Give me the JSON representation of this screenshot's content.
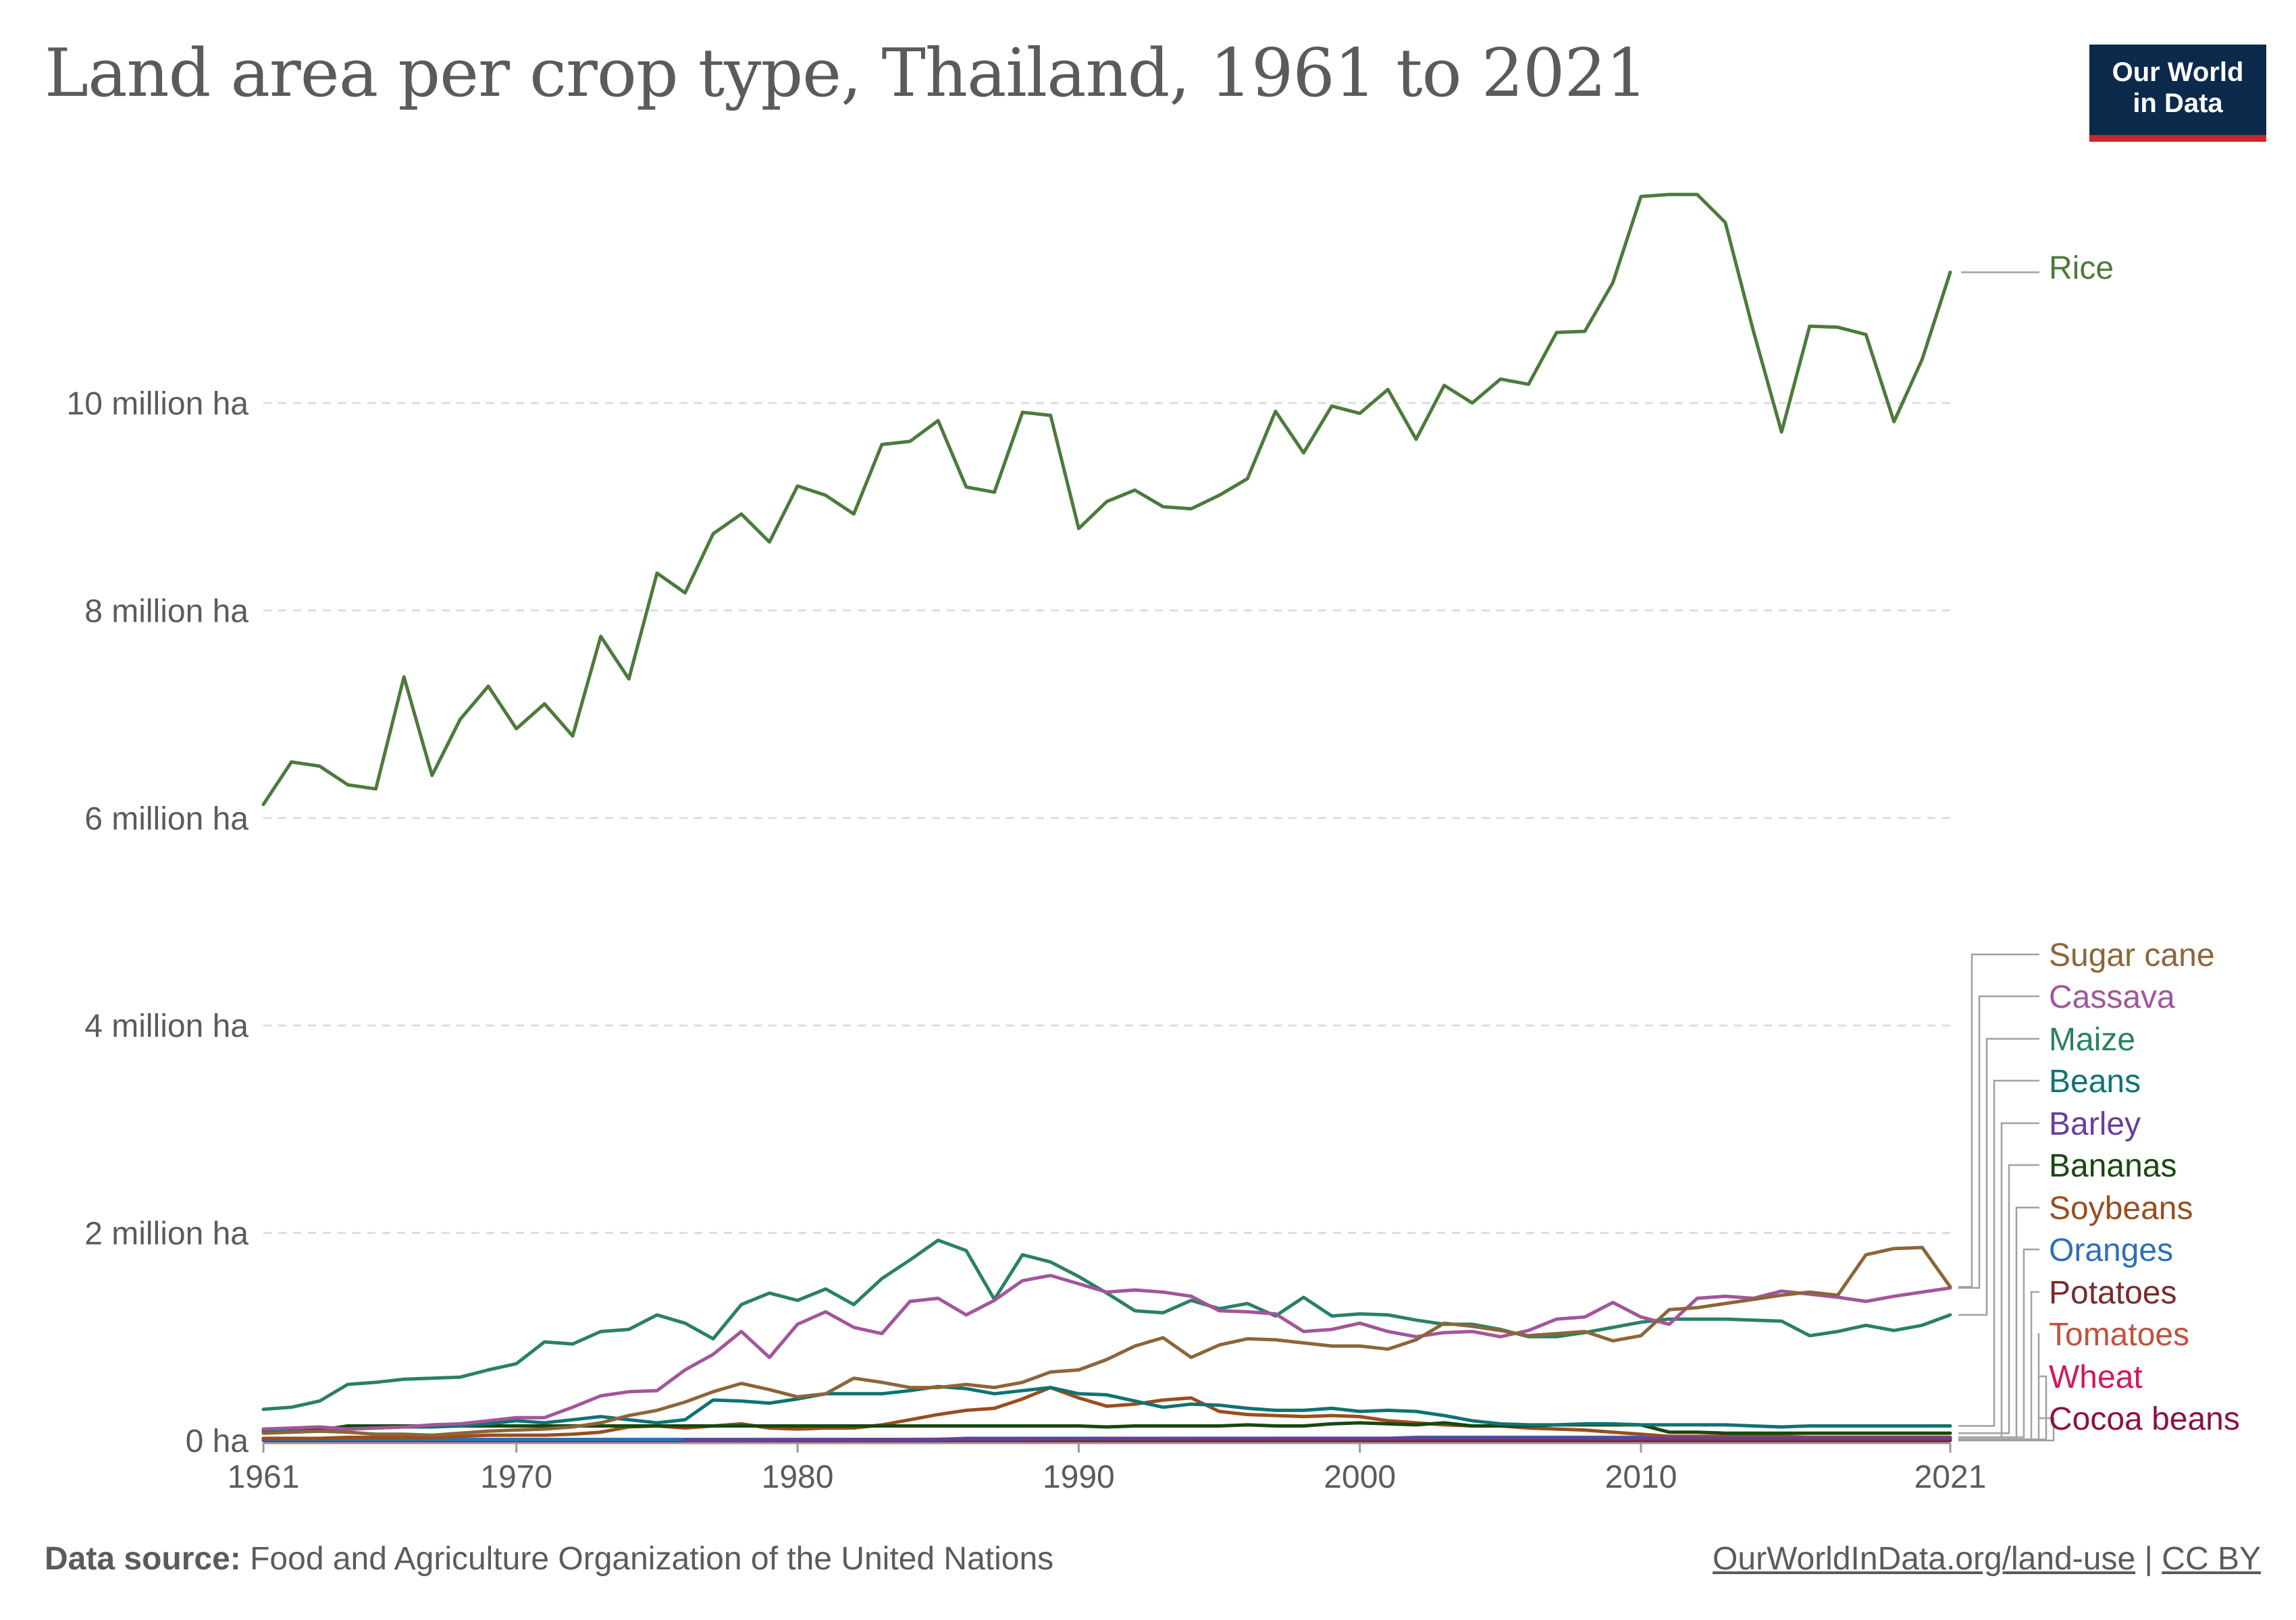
{
  "header": {
    "title": "Land area per crop type, Thailand, 1961 to 2021",
    "logo_line1": "Our World",
    "logo_line2": "in Data"
  },
  "footer": {
    "source_label": "Data source:",
    "source_text": "Food and Agriculture Organization of the United Nations",
    "link_text": "OurWorldInData.org/land-use",
    "separator": "|",
    "license": "CC BY"
  },
  "colors": {
    "grid": "#dddddd",
    "axis_text": "#5b5b5b",
    "leader": "#a0a0a0"
  },
  "chart_data": {
    "type": "line",
    "title": "Land area per crop type, Thailand, 1961 to 2021",
    "xlabel": "",
    "ylabel": "",
    "xlim": [
      1961,
      2021
    ],
    "ylim": [
      0,
      11500000
    ],
    "x_ticks": [
      {
        "value": 1961,
        "label": "1961"
      },
      {
        "value": 1970,
        "label": "1970"
      },
      {
        "value": 1980,
        "label": "1980"
      },
      {
        "value": 1990,
        "label": "1990"
      },
      {
        "value": 2000,
        "label": "2000"
      },
      {
        "value": 2010,
        "label": "2010"
      },
      {
        "value": 2021,
        "label": "2021"
      }
    ],
    "y_ticks": [
      {
        "value": 0,
        "label": "0 ha"
      },
      {
        "value": 2000000,
        "label": "2 million ha"
      },
      {
        "value": 4000000,
        "label": "4 million ha"
      },
      {
        "value": 6000000,
        "label": "6 million ha"
      },
      {
        "value": 8000000,
        "label": "8 million ha"
      },
      {
        "value": 10000000,
        "label": "10 million ha"
      }
    ],
    "grid": true,
    "legend": "right, labels at line ends",
    "series": [
      {
        "name": "Rice",
        "color": "#4c7a3b",
        "start": 1961,
        "values": [
          6130000,
          6540000,
          6500000,
          6320000,
          6280000,
          7360000,
          6410000,
          6950000,
          7270000,
          6860000,
          7100000,
          6790000,
          7750000,
          7340000,
          8360000,
          8170000,
          8740000,
          8930000,
          8660000,
          9200000,
          9110000,
          8930000,
          9600000,
          9630000,
          9830000,
          9190000,
          9140000,
          9910000,
          9880000,
          8790000,
          9050000,
          9160000,
          9000000,
          8980000,
          9110000,
          9270000,
          9920000,
          9520000,
          9970000,
          9900000,
          10130000,
          9650000,
          10170000,
          10000000,
          10230000,
          10180000,
          10680000,
          10690000,
          11160000,
          11990000,
          12010000,
          12010000,
          11740000,
          10690000,
          9720000,
          10740000,
          10730000,
          10660000,
          9820000,
          10420000,
          11260000
        ]
      },
      {
        "name": "Sugar cane",
        "color": "#8c6539",
        "start": 1961,
        "values": [
          70000,
          80000,
          90000,
          80000,
          60000,
          60000,
          50000,
          70000,
          90000,
          100000,
          110000,
          130000,
          170000,
          240000,
          290000,
          370000,
          470000,
          550000,
          490000,
          420000,
          450000,
          600000,
          560000,
          510000,
          510000,
          540000,
          510000,
          560000,
          660000,
          680000,
          780000,
          910000,
          990000,
          800000,
          920000,
          980000,
          970000,
          940000,
          910000,
          910000,
          880000,
          970000,
          1130000,
          1100000,
          1060000,
          1010000,
          1030000,
          1050000,
          960000,
          1010000,
          1260000,
          1280000,
          1320000,
          1360000,
          1400000,
          1430000,
          1400000,
          1790000,
          1850000,
          1860000,
          1480000
        ]
      },
      {
        "name": "Cassava",
        "color": "#a2559c",
        "start": 1961,
        "values": [
          110000,
          120000,
          130000,
          110000,
          120000,
          130000,
          150000,
          160000,
          190000,
          220000,
          220000,
          320000,
          430000,
          470000,
          480000,
          680000,
          830000,
          1050000,
          800000,
          1120000,
          1240000,
          1090000,
          1030000,
          1340000,
          1370000,
          1210000,
          1350000,
          1540000,
          1590000,
          1510000,
          1430000,
          1450000,
          1430000,
          1390000,
          1250000,
          1240000,
          1220000,
          1050000,
          1070000,
          1130000,
          1050000,
          1000000,
          1040000,
          1050000,
          1000000,
          1060000,
          1170000,
          1190000,
          1330000,
          1190000,
          1120000,
          1370000,
          1390000,
          1370000,
          1440000,
          1410000,
          1380000,
          1340000,
          1390000,
          1430000,
          1470000
        ]
      },
      {
        "name": "Maize",
        "color": "#2a8066",
        "start": 1961,
        "values": [
          300000,
          320000,
          380000,
          540000,
          560000,
          590000,
          600000,
          610000,
          680000,
          740000,
          950000,
          930000,
          1050000,
          1070000,
          1210000,
          1130000,
          980000,
          1310000,
          1420000,
          1350000,
          1460000,
          1310000,
          1560000,
          1740000,
          1930000,
          1830000,
          1360000,
          1790000,
          1720000,
          1580000,
          1420000,
          1250000,
          1230000,
          1350000,
          1270000,
          1320000,
          1200000,
          1380000,
          1200000,
          1220000,
          1210000,
          1160000,
          1120000,
          1120000,
          1070000,
          1000000,
          1000000,
          1040000,
          1090000,
          1140000,
          1170000,
          1170000,
          1170000,
          1160000,
          1150000,
          1010000,
          1050000,
          1110000,
          1060000,
          1110000,
          1210000
        ]
      },
      {
        "name": "Beans",
        "color": "#0e7373",
        "start": 1961,
        "values": [
          80000,
          90000,
          90000,
          110000,
          120000,
          130000,
          130000,
          140000,
          160000,
          190000,
          170000,
          200000,
          230000,
          200000,
          170000,
          200000,
          390000,
          380000,
          360000,
          400000,
          450000,
          450000,
          450000,
          480000,
          520000,
          500000,
          450000,
          480000,
          510000,
          450000,
          440000,
          380000,
          320000,
          350000,
          340000,
          310000,
          290000,
          290000,
          310000,
          280000,
          290000,
          280000,
          240000,
          190000,
          160000,
          150000,
          150000,
          160000,
          160000,
          150000,
          150000,
          150000,
          150000,
          140000,
          130000,
          140000,
          140000,
          140000,
          140000,
          140000,
          140000
        ]
      },
      {
        "name": "Barley",
        "color": "#6a3d9a",
        "start": 1976,
        "values": [
          5000,
          5000,
          5000,
          6000,
          7000,
          8000,
          9000,
          9000,
          10000,
          12000,
          14000,
          15000,
          15000,
          16000,
          16000,
          17000,
          17000,
          18000,
          18000,
          19000,
          19000,
          20000,
          20000,
          20000,
          20000,
          20000,
          20000,
          20000,
          20000,
          20000,
          20000,
          20000,
          20000,
          20000,
          20000,
          20000,
          20000,
          20000,
          20000,
          20000,
          20000,
          20000,
          20000,
          20000,
          20000,
          20000
        ]
      },
      {
        "name": "Bananas",
        "color": "#18470f",
        "start": 1961,
        "values": [
          100000,
          100000,
          100000,
          140000,
          140000,
          140000,
          140000,
          140000,
          140000,
          140000,
          140000,
          140000,
          140000,
          140000,
          140000,
          140000,
          140000,
          140000,
          140000,
          140000,
          140000,
          140000,
          140000,
          140000,
          140000,
          140000,
          140000,
          140000,
          140000,
          140000,
          130000,
          140000,
          140000,
          140000,
          140000,
          150000,
          140000,
          140000,
          160000,
          170000,
          160000,
          150000,
          170000,
          140000,
          140000,
          140000,
          150000,
          150000,
          150000,
          150000,
          80000,
          80000,
          70000,
          70000,
          70000,
          70000,
          70000,
          70000,
          70000,
          70000,
          70000
        ]
      },
      {
        "name": "Soybeans",
        "color": "#9a4d1e",
        "start": 1961,
        "values": [
          20000,
          20000,
          20000,
          30000,
          30000,
          30000,
          30000,
          40000,
          50000,
          50000,
          50000,
          60000,
          80000,
          130000,
          140000,
          120000,
          140000,
          160000,
          120000,
          110000,
          120000,
          120000,
          150000,
          200000,
          250000,
          290000,
          310000,
          400000,
          510000,
          410000,
          330000,
          350000,
          390000,
          410000,
          280000,
          250000,
          240000,
          230000,
          240000,
          230000,
          190000,
          170000,
          150000,
          140000,
          140000,
          120000,
          110000,
          100000,
          80000,
          60000,
          40000,
          40000,
          40000,
          40000,
          40000,
          30000,
          30000,
          30000,
          30000,
          30000,
          30000
        ]
      },
      {
        "name": "Oranges",
        "color": "#2e6fb8",
        "start": 1961,
        "values": [
          10000,
          10000,
          10000,
          10000,
          10000,
          10000,
          10000,
          10000,
          10000,
          10000,
          10000,
          10000,
          10000,
          10000,
          10000,
          10000,
          10000,
          10000,
          10000,
          10000,
          10000,
          10000,
          10000,
          10000,
          10000,
          20000,
          20000,
          20000,
          20000,
          20000,
          20000,
          20000,
          20000,
          20000,
          20000,
          20000,
          20000,
          20000,
          20000,
          20000,
          20000,
          30000,
          30000,
          30000,
          30000,
          30000,
          30000,
          30000,
          30000,
          30000,
          30000,
          30000,
          30000,
          30000,
          30000,
          30000,
          30000,
          30000,
          30000,
          30000,
          30000
        ]
      },
      {
        "name": "Potatoes",
        "color": "#7a2a2a",
        "start": 1961,
        "values": [
          1000,
          1000,
          1000,
          1000,
          1000,
          1000,
          1000,
          1000,
          1000,
          2000,
          2000,
          2000,
          2000,
          2000,
          2000,
          2000,
          2000,
          3000,
          3000,
          3000,
          3000,
          3000,
          4000,
          4000,
          4000,
          4000,
          4000,
          5000,
          5000,
          5000,
          5000,
          6000,
          6000,
          6000,
          6000,
          7000,
          7000,
          7000,
          7000,
          8000,
          8000,
          8000,
          8000,
          8000,
          8000,
          8000,
          8000,
          8000,
          9000,
          9000,
          9000,
          9000,
          9000,
          9000,
          9000,
          9000,
          9000,
          9000,
          9000,
          9000,
          9000
        ]
      },
      {
        "name": "Tomatoes",
        "color": "#c0523f",
        "start": 1961,
        "values": [
          2000,
          2000,
          2000,
          2000,
          2000,
          2000,
          3000,
          3000,
          3000,
          3000,
          4000,
          4000,
          4000,
          5000,
          5000,
          5000,
          6000,
          6000,
          6000,
          7000,
          7000,
          7000,
          8000,
          8000,
          8000,
          9000,
          9000,
          9000,
          10000,
          10000,
          10000,
          10000,
          10000,
          10000,
          10000,
          10000,
          10000,
          10000,
          10000,
          10000,
          10000,
          10000,
          10000,
          10000,
          10000,
          10000,
          10000,
          10000,
          10000,
          10000,
          10000,
          10000,
          10000,
          10000,
          10000,
          10000,
          10000,
          10000,
          10000,
          10000,
          10000
        ]
      },
      {
        "name": "Wheat",
        "color": "#d1185f",
        "start": 1986,
        "values": [
          10000,
          10000,
          10000,
          10000,
          10000,
          10000,
          10000,
          10000,
          10000,
          10000,
          10000,
          10000,
          10000,
          10000,
          10000,
          10000,
          10000,
          10000,
          10000,
          10000,
          10000,
          10000,
          10000,
          10000,
          10000,
          10000,
          10000,
          10000,
          10000,
          10000,
          10000,
          10000,
          10000,
          10000,
          10000,
          10000
        ]
      },
      {
        "name": "Cocoa beans",
        "color": "#8a1148",
        "start": 1961,
        "values": [
          0,
          0,
          0,
          0,
          0,
          0,
          0,
          0,
          0,
          0,
          0,
          0,
          0,
          0,
          0,
          0,
          0,
          0,
          0,
          0,
          0,
          0,
          0,
          0,
          0,
          0,
          0,
          0,
          0,
          0,
          0,
          0,
          0,
          0,
          0,
          0,
          0,
          0,
          0,
          0,
          0,
          0,
          0,
          0,
          0,
          0,
          0,
          0,
          0,
          0,
          0,
          0,
          0,
          0,
          0,
          0,
          0,
          0,
          0,
          0,
          0
        ]
      }
    ]
  }
}
